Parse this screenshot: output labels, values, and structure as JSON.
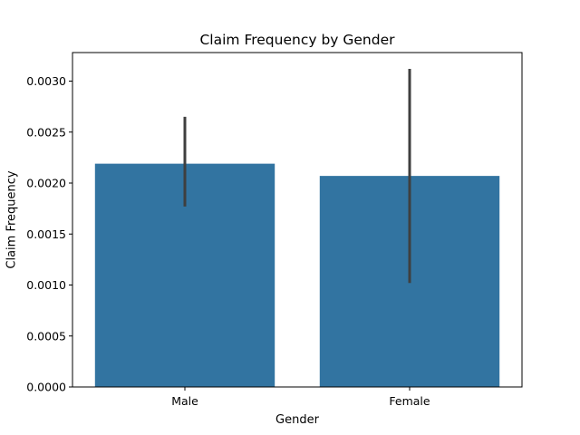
{
  "chart_data": {
    "type": "bar",
    "title": "Claim Frequency by Gender",
    "xlabel": "Gender",
    "ylabel": "Claim Frequency",
    "categories": [
      "Male",
      "Female"
    ],
    "values": [
      0.00219,
      0.00207
    ],
    "error_bars": [
      {
        "low": 0.00177,
        "high": 0.00265
      },
      {
        "low": 0.00102,
        "high": 0.00312
      }
    ],
    "ylim": [
      0,
      0.00328
    ],
    "yticks": [
      "0.0000",
      "0.0005",
      "0.0010",
      "0.0015",
      "0.0020",
      "0.0025",
      "0.0030"
    ],
    "ytick_values": [
      0,
      0.0005,
      0.001,
      0.0015,
      0.002,
      0.0025,
      0.003
    ],
    "bar_color": "#3274a1",
    "errorbar_color": "#3f3f3f",
    "grid": false,
    "legend": "none"
  }
}
